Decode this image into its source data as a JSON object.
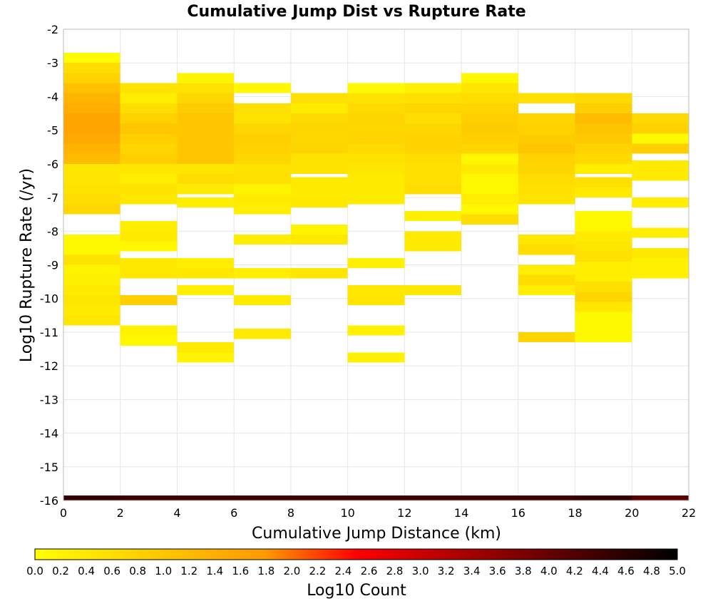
{
  "chart_data": {
    "type": "heatmap",
    "title": "Cumulative Jump Dist vs Rupture Rate",
    "xlabel": "Cumulative Jump Distance (km)",
    "ylabel": "Log10 Rupture Rate (/yr)",
    "xlim": [
      0,
      22
    ],
    "ylim": [
      -16,
      -2
    ],
    "x_ticks": [
      "0",
      "2",
      "4",
      "6",
      "8",
      "10",
      "12",
      "14",
      "16",
      "18",
      "20",
      "22"
    ],
    "y_ticks": [
      "-2",
      "-3",
      "-4",
      "-5",
      "-6",
      "-7",
      "-8",
      "-9",
      "-10",
      "-11",
      "-12",
      "-13",
      "-14",
      "-15",
      "-16"
    ],
    "x_bin_width": 2,
    "y_bin_height": 0.3,
    "grid": true,
    "colorbar": {
      "label": "Log10 Count",
      "range": [
        0,
        5
      ],
      "ticks": [
        "0.0",
        "0.2",
        "0.4",
        "0.6",
        "0.8",
        "1.0",
        "1.2",
        "1.4",
        "1.6",
        "1.8",
        "2.0",
        "2.2",
        "2.4",
        "2.6",
        "2.8",
        "3.0",
        "3.2",
        "3.4",
        "3.6",
        "3.8",
        "4.0",
        "4.2",
        "4.4",
        "4.6",
        "4.8",
        "5.0"
      ],
      "colors": [
        "#ffff00",
        "#ff9900",
        "#ff0000",
        "#000000"
      ],
      "placement": "bottom"
    },
    "cells": [
      {
        "x": 0,
        "bins": [
          {
            "y": -2.85,
            "v": 0.05
          },
          {
            "y": -3.15,
            "v": 0.6
          },
          {
            "y": -3.45,
            "v": 0.8
          },
          {
            "y": -3.75,
            "v": 1.1
          },
          {
            "y": -4.05,
            "v": 1.3
          },
          {
            "y": -4.35,
            "v": 1.45
          },
          {
            "y": -4.65,
            "v": 1.55
          },
          {
            "y": -4.95,
            "v": 1.6
          },
          {
            "y": -5.25,
            "v": 1.5
          },
          {
            "y": -5.55,
            "v": 1.35
          },
          {
            "y": -5.85,
            "v": 1.2
          },
          {
            "y": -6.15,
            "v": 0.45
          },
          {
            "y": -6.45,
            "v": 0.45
          },
          {
            "y": -6.75,
            "v": 0.5
          },
          {
            "y": -7.05,
            "v": 0.6
          },
          {
            "y": -7.35,
            "v": 0.7
          },
          {
            "y": -8.25,
            "v": 0.1
          },
          {
            "y": -8.55,
            "v": 0.1
          },
          {
            "y": -8.85,
            "v": 0.5
          },
          {
            "y": -9.15,
            "v": 0.2
          },
          {
            "y": -9.45,
            "v": 0.25
          },
          {
            "y": -9.75,
            "v": 0.35
          },
          {
            "y": -10.05,
            "v": 0.45
          },
          {
            "y": -10.35,
            "v": 0.35
          },
          {
            "y": -10.65,
            "v": 0.45
          }
        ]
      },
      {
        "x": 2,
        "bins": [
          {
            "y": -3.75,
            "v": 0.5
          },
          {
            "y": -4.05,
            "v": 0.3
          },
          {
            "y": -4.35,
            "v": 0.6
          },
          {
            "y": -4.65,
            "v": 0.8
          },
          {
            "y": -4.95,
            "v": 1.0
          },
          {
            "y": -5.25,
            "v": 0.85
          },
          {
            "y": -5.55,
            "v": 0.75
          },
          {
            "y": -5.85,
            "v": 0.85
          },
          {
            "y": -6.15,
            "v": 0.45
          },
          {
            "y": -6.45,
            "v": 0.3
          },
          {
            "y": -6.75,
            "v": 0.5
          },
          {
            "y": -7.05,
            "v": 0.4
          },
          {
            "y": -7.85,
            "v": 0.3
          },
          {
            "y": -8.15,
            "v": 0.35
          },
          {
            "y": -8.45,
            "v": 0.15
          },
          {
            "y": -8.95,
            "v": 0.4
          },
          {
            "y": -9.25,
            "v": 0.4
          },
          {
            "y": -10.05,
            "v": 0.85
          },
          {
            "y": -10.95,
            "v": 0.25
          },
          {
            "y": -11.25,
            "v": 0.15
          }
        ]
      },
      {
        "x": 4,
        "bins": [
          {
            "y": -3.45,
            "v": 0.2
          },
          {
            "y": -3.75,
            "v": 0.5
          },
          {
            "y": -4.05,
            "v": 0.7
          },
          {
            "y": -4.35,
            "v": 0.9
          },
          {
            "y": -4.65,
            "v": 1.0
          },
          {
            "y": -4.95,
            "v": 1.0
          },
          {
            "y": -5.25,
            "v": 1.0
          },
          {
            "y": -5.55,
            "v": 1.0
          },
          {
            "y": -5.85,
            "v": 1.0
          },
          {
            "y": -6.15,
            "v": 0.45
          },
          {
            "y": -6.45,
            "v": 0.6
          },
          {
            "y": -6.75,
            "v": 0.35
          },
          {
            "y": -7.15,
            "v": 0.3
          },
          {
            "y": -8.95,
            "v": 0.3
          },
          {
            "y": -9.25,
            "v": 0.4
          },
          {
            "y": -9.75,
            "v": 0.3
          },
          {
            "y": -11.45,
            "v": 0.35
          },
          {
            "y": -11.75,
            "v": 0.2
          }
        ]
      },
      {
        "x": 6,
        "bins": [
          {
            "y": -3.75,
            "v": 0.15
          },
          {
            "y": -4.35,
            "v": 0.55
          },
          {
            "y": -4.65,
            "v": 0.5
          },
          {
            "y": -4.95,
            "v": 0.7
          },
          {
            "y": -5.25,
            "v": 0.85
          },
          {
            "y": -5.55,
            "v": 0.8
          },
          {
            "y": -5.85,
            "v": 0.7
          },
          {
            "y": -6.15,
            "v": 0.5
          },
          {
            "y": -6.45,
            "v": 0.55
          },
          {
            "y": -6.75,
            "v": 0.2
          },
          {
            "y": -7.05,
            "v": 0.35
          },
          {
            "y": -7.35,
            "v": 0.3
          },
          {
            "y": -8.25,
            "v": 0.3
          },
          {
            "y": -9.25,
            "v": 0.3
          },
          {
            "y": -10.05,
            "v": 0.35
          },
          {
            "y": -11.05,
            "v": 0.35
          }
        ]
      },
      {
        "x": 8,
        "bins": [
          {
            "y": -4.05,
            "v": 0.55
          },
          {
            "y": -4.35,
            "v": 0.35
          },
          {
            "y": -4.65,
            "v": 0.65
          },
          {
            "y": -4.95,
            "v": 0.75
          },
          {
            "y": -5.25,
            "v": 0.7
          },
          {
            "y": -5.55,
            "v": 0.75
          },
          {
            "y": -5.85,
            "v": 0.5
          },
          {
            "y": -6.15,
            "v": 0.5
          },
          {
            "y": -6.55,
            "v": 0.35
          },
          {
            "y": -6.85,
            "v": 0.35
          },
          {
            "y": -7.15,
            "v": 0.4
          },
          {
            "y": -7.95,
            "v": 0.2
          },
          {
            "y": -8.25,
            "v": 0.4
          },
          {
            "y": -9.25,
            "v": 0.45
          }
        ]
      },
      {
        "x": 10,
        "bins": [
          {
            "y": -3.75,
            "v": 0.1
          },
          {
            "y": -4.05,
            "v": 0.5
          },
          {
            "y": -4.35,
            "v": 0.65
          },
          {
            "y": -4.65,
            "v": 0.75
          },
          {
            "y": -4.95,
            "v": 0.7
          },
          {
            "y": -5.25,
            "v": 0.75
          },
          {
            "y": -5.55,
            "v": 0.65
          },
          {
            "y": -5.85,
            "v": 0.5
          },
          {
            "y": -6.15,
            "v": 0.45
          },
          {
            "y": -6.45,
            "v": 0.35
          },
          {
            "y": -6.75,
            "v": 0.35
          },
          {
            "y": -7.05,
            "v": 0.35
          },
          {
            "y": -8.95,
            "v": 0.25
          },
          {
            "y": -9.75,
            "v": 0.4
          },
          {
            "y": -10.05,
            "v": 0.45
          },
          {
            "y": -10.95,
            "v": 0.25
          },
          {
            "y": -11.75,
            "v": 0.25
          }
        ]
      },
      {
        "x": 12,
        "bins": [
          {
            "y": -3.75,
            "v": 0.25
          },
          {
            "y": -4.05,
            "v": 0.55
          },
          {
            "y": -4.35,
            "v": 0.75
          },
          {
            "y": -4.65,
            "v": 0.6
          },
          {
            "y": -4.95,
            "v": 0.7
          },
          {
            "y": -5.25,
            "v": 0.8
          },
          {
            "y": -5.55,
            "v": 0.8
          },
          {
            "y": -5.85,
            "v": 0.6
          },
          {
            "y": -6.15,
            "v": 0.55
          },
          {
            "y": -6.45,
            "v": 0.55
          },
          {
            "y": -6.75,
            "v": 0.6
          },
          {
            "y": -7.55,
            "v": 0.25
          },
          {
            "y": -8.15,
            "v": 0.35
          },
          {
            "y": -8.45,
            "v": 0.35
          },
          {
            "y": -9.75,
            "v": 0.4
          }
        ]
      },
      {
        "x": 14,
        "bins": [
          {
            "y": -3.45,
            "v": 0.15
          },
          {
            "y": -3.75,
            "v": 0.45
          },
          {
            "y": -4.05,
            "v": 0.6
          },
          {
            "y": -4.35,
            "v": 0.75
          },
          {
            "y": -4.65,
            "v": 0.85
          },
          {
            "y": -4.95,
            "v": 0.9
          },
          {
            "y": -5.25,
            "v": 0.85
          },
          {
            "y": -5.55,
            "v": 0.75
          },
          {
            "y": -5.85,
            "v": 0.15
          },
          {
            "y": -6.15,
            "v": 0.35
          },
          {
            "y": -6.45,
            "v": 0.15
          },
          {
            "y": -6.75,
            "v": 0.15
          },
          {
            "y": -7.05,
            "v": 0.3
          },
          {
            "y": -7.35,
            "v": 0.15
          },
          {
            "y": -7.65,
            "v": 0.6
          }
        ]
      },
      {
        "x": 16,
        "bins": [
          {
            "y": -4.05,
            "v": 0.55
          },
          {
            "y": -4.65,
            "v": 0.75
          },
          {
            "y": -4.95,
            "v": 0.8
          },
          {
            "y": -5.25,
            "v": 0.9
          },
          {
            "y": -5.55,
            "v": 1.0
          },
          {
            "y": -5.85,
            "v": 0.8
          },
          {
            "y": -6.15,
            "v": 0.75
          },
          {
            "y": -6.45,
            "v": 0.6
          },
          {
            "y": -6.75,
            "v": 0.55
          },
          {
            "y": -7.05,
            "v": 0.5
          },
          {
            "y": -8.25,
            "v": 0.4
          },
          {
            "y": -8.55,
            "v": 0.6
          },
          {
            "y": -9.15,
            "v": 0.3
          },
          {
            "y": -9.45,
            "v": 0.6
          },
          {
            "y": -9.75,
            "v": 0.3
          },
          {
            "y": -11.15,
            "v": 0.75
          }
        ]
      },
      {
        "x": 18,
        "bins": [
          {
            "y": -4.05,
            "v": 0.65
          },
          {
            "y": -4.35,
            "v": 0.85
          },
          {
            "y": -4.65,
            "v": 1.2
          },
          {
            "y": -4.95,
            "v": 1.05
          },
          {
            "y": -5.25,
            "v": 0.95
          },
          {
            "y": -5.55,
            "v": 0.8
          },
          {
            "y": -5.85,
            "v": 0.65
          },
          {
            "y": -6.15,
            "v": 0.3
          },
          {
            "y": -6.55,
            "v": 0.55
          },
          {
            "y": -6.85,
            "v": 0.35
          },
          {
            "y": -7.55,
            "v": 0.1
          },
          {
            "y": -7.85,
            "v": 0.15
          },
          {
            "y": -8.15,
            "v": 0.35
          },
          {
            "y": -8.45,
            "v": 0.45
          },
          {
            "y": -8.75,
            "v": 0.55
          },
          {
            "y": -9.05,
            "v": 0.3
          },
          {
            "y": -9.35,
            "v": 0.3
          },
          {
            "y": -9.65,
            "v": 0.55
          },
          {
            "y": -9.95,
            "v": 0.75
          },
          {
            "y": -10.25,
            "v": 0.4
          },
          {
            "y": -10.55,
            "v": 0.1
          },
          {
            "y": -10.85,
            "v": 0.1
          },
          {
            "y": -11.15,
            "v": 0.1
          }
        ]
      },
      {
        "x": 20,
        "bins": [
          {
            "y": -4.65,
            "v": 0.65
          },
          {
            "y": -4.95,
            "v": 0.8
          },
          {
            "y": -5.25,
            "v": 0.1
          },
          {
            "y": -5.55,
            "v": 0.85
          },
          {
            "y": -6.05,
            "v": 0.35
          },
          {
            "y": -6.35,
            "v": 0.35
          },
          {
            "y": -7.15,
            "v": 0.3
          },
          {
            "y": -8.05,
            "v": 0.3
          },
          {
            "y": -8.65,
            "v": 0.4
          },
          {
            "y": -8.95,
            "v": 0.25
          },
          {
            "y": -9.25,
            "v": 0.25
          }
        ]
      }
    ],
    "floor_band": {
      "y": -16,
      "segments": [
        {
          "x": 0,
          "v": 4.5
        },
        {
          "x": 2,
          "v": 4.4
        },
        {
          "x": 4,
          "v": 4.4
        },
        {
          "x": 6,
          "v": 4.4
        },
        {
          "x": 8,
          "v": 4.4
        },
        {
          "x": 10,
          "v": 4.4
        },
        {
          "x": 12,
          "v": 4.4
        },
        {
          "x": 14,
          "v": 4.4
        },
        {
          "x": 16,
          "v": 4.4
        },
        {
          "x": 18,
          "v": 4.5
        },
        {
          "x": 20,
          "v": 4.1
        }
      ]
    }
  }
}
